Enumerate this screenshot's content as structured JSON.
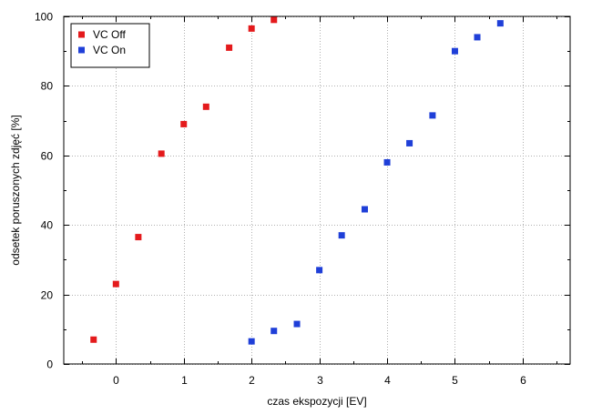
{
  "chart_data": {
    "type": "scatter",
    "xlabel": "czas ekspozycji [EV]",
    "ylabel": "odsetek poruszonych zdjęć [%]",
    "xlim": [
      -0.77,
      6.7
    ],
    "ylim": [
      0,
      100
    ],
    "xticks": [
      0,
      1,
      2,
      3,
      4,
      5,
      6
    ],
    "yticks": [
      0,
      20,
      40,
      60,
      80,
      100
    ],
    "grid": true,
    "legend_position": "top-left",
    "series": [
      {
        "name": "VC Off",
        "color": "#e41a1c",
        "marker": "square",
        "x": [
          -0.33,
          0.0,
          0.33,
          0.67,
          1.0,
          1.33,
          1.67,
          2.0,
          2.33
        ],
        "y": [
          7,
          23,
          36.5,
          60.5,
          69,
          74,
          91,
          96.5,
          99
        ]
      },
      {
        "name": "VC On",
        "color": "#1f3fd8",
        "marker": "square",
        "x": [
          2.0,
          2.33,
          2.67,
          3.0,
          3.33,
          3.67,
          4.0,
          4.33,
          4.67,
          5.0,
          5.33,
          5.67
        ],
        "y": [
          6.5,
          9.5,
          11.5,
          27,
          37,
          44.5,
          58,
          63.5,
          71.5,
          90,
          94,
          98
        ]
      }
    ]
  }
}
